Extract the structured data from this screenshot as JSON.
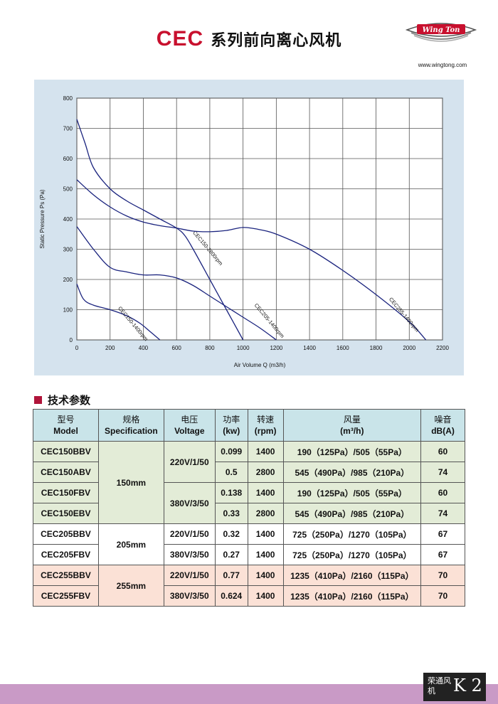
{
  "header": {
    "brand": "CEC",
    "title": "系列前向离心风机",
    "logo_text": "Wing Ton",
    "website": "www.wingtong.com"
  },
  "chart_data": {
    "type": "line",
    "xlabel": "Air Volume Q (m3/h)",
    "ylabel": "Static Pressure Ps (Pa)",
    "xlim": [
      0,
      2200
    ],
    "ylim": [
      0,
      800
    ],
    "xticks": [
      0,
      200,
      400,
      600,
      800,
      1000,
      1200,
      1400,
      1600,
      1800,
      2000,
      2200
    ],
    "yticks": [
      0,
      100,
      200,
      300,
      400,
      500,
      600,
      700,
      800
    ],
    "grid": true,
    "series": [
      {
        "name": "CEC150-1400rpm",
        "x": [
          0,
          40,
          100,
          200,
          300,
          380,
          440,
          500
        ],
        "y": [
          185,
          135,
          115,
          100,
          80,
          55,
          28,
          0
        ]
      },
      {
        "name": "CEC150-2800rpm",
        "x": [
          0,
          50,
          100,
          200,
          300,
          400,
          500,
          600,
          650,
          700,
          800,
          900,
          1000
        ],
        "y": [
          730,
          650,
          570,
          500,
          460,
          430,
          400,
          370,
          345,
          300,
          200,
          100,
          0
        ]
      },
      {
        "name": "CEC205-1400rpm",
        "x": [
          0,
          100,
          200,
          300,
          400,
          500,
          600,
          700,
          800,
          900,
          1000,
          1100,
          1200
        ],
        "y": [
          375,
          300,
          240,
          225,
          215,
          215,
          205,
          180,
          145,
          110,
          75,
          40,
          0
        ]
      },
      {
        "name": "CEC255-1400rpm",
        "x": [
          0,
          100,
          200,
          300,
          400,
          500,
          600,
          700,
          800,
          900,
          1000,
          1100,
          1200,
          1400,
          1600,
          1800,
          2000,
          2100
        ],
        "y": [
          530,
          480,
          440,
          410,
          390,
          378,
          370,
          360,
          358,
          362,
          372,
          365,
          350,
          300,
          230,
          150,
          60,
          0
        ]
      }
    ]
  },
  "section": {
    "title": "技术参数"
  },
  "table": {
    "headers": [
      {
        "cn": "型号",
        "en": "Model"
      },
      {
        "cn": "规格",
        "en": "Specification"
      },
      {
        "cn": "电压",
        "en": "Voltage"
      },
      {
        "cn": "功率",
        "en": "(kw)"
      },
      {
        "cn": "转速",
        "en": "(rpm)"
      },
      {
        "cn": "风量",
        "en": "(m³/h)"
      },
      {
        "cn": "噪音",
        "en": "dB(A)"
      }
    ],
    "rows": [
      {
        "model": "CEC150BBV",
        "power": "0.099",
        "speed": "1400",
        "airflow": "190（125Pa）/505（55Pa）",
        "noise": "60"
      },
      {
        "model": "CEC150ABV",
        "power": "0.5",
        "speed": "2800",
        "airflow": "545（490Pa）/985（210Pa）",
        "noise": "74"
      },
      {
        "model": "CEC150FBV",
        "power": "0.138",
        "speed": "1400",
        "airflow": "190（125Pa）/505（55Pa）",
        "noise": "60"
      },
      {
        "model": "CEC150EBV",
        "power": "0.33",
        "speed": "2800",
        "airflow": "545（490Pa）/985（210Pa）",
        "noise": "74"
      },
      {
        "model": "CEC205BBV",
        "voltage": "220V/1/50",
        "power": "0.32",
        "speed": "1400",
        "airflow": "725（250Pa）/1270（105Pa）",
        "noise": "67"
      },
      {
        "model": "CEC205FBV",
        "voltage": "380V/3/50",
        "power": "0.27",
        "speed": "1400",
        "airflow": "725（250Pa）/1270（105Pa）",
        "noise": "67"
      },
      {
        "model": "CEC255BBV",
        "voltage": "220V/1/50",
        "power": "0.77",
        "speed": "1400",
        "airflow": "1235（410Pa）/2160（115Pa）",
        "noise": "70"
      },
      {
        "model": "CEC255FBV",
        "voltage": "380V/3/50",
        "power": "0.624",
        "speed": "1400",
        "airflow": "1235（410Pa）/2160（115Pa）",
        "noise": "70"
      }
    ],
    "spec_groups": [
      "150mm",
      "205mm",
      "255mm"
    ],
    "voltage_groups": [
      "220V/1/50",
      "380V/3/50"
    ]
  },
  "footer": {
    "brand_cn": "荣通风机",
    "page": "K 2"
  }
}
